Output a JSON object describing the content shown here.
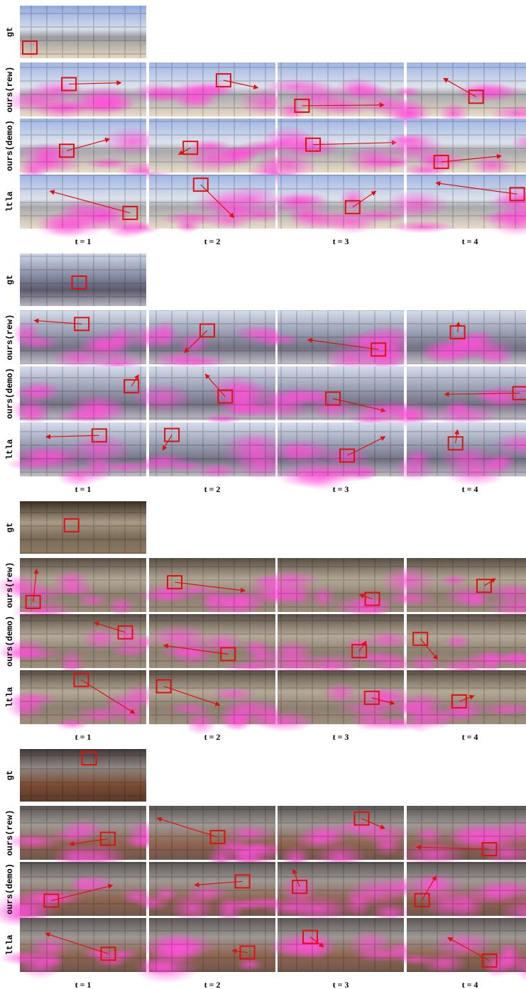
{
  "panels": [
    {
      "row_labels": [
        "gt",
        "ours(rew)",
        "ours(demo)",
        "ltla"
      ],
      "col_labels": [
        "t = 1",
        "t = 2",
        "t = 3",
        "t = 4"
      ]
    },
    {
      "row_labels": [
        "gt",
        "ours(rew)",
        "ours(demo)",
        "ltla"
      ],
      "col_labels": [
        "t = 1",
        "t = 2",
        "t = 3",
        "t = 4"
      ]
    },
    {
      "row_labels": [
        "gt",
        "ours(rew)",
        "ours(demo)",
        "ltla"
      ],
      "col_labels": [
        "t = 1",
        "t = 2",
        "t = 3",
        "t = 4"
      ]
    },
    {
      "row_labels": [
        "gt",
        "ours(rew)",
        "ours(demo)",
        "ltla"
      ],
      "col_labels": [
        "t = 1",
        "t = 2",
        "t = 3",
        "t = 4"
      ]
    }
  ]
}
